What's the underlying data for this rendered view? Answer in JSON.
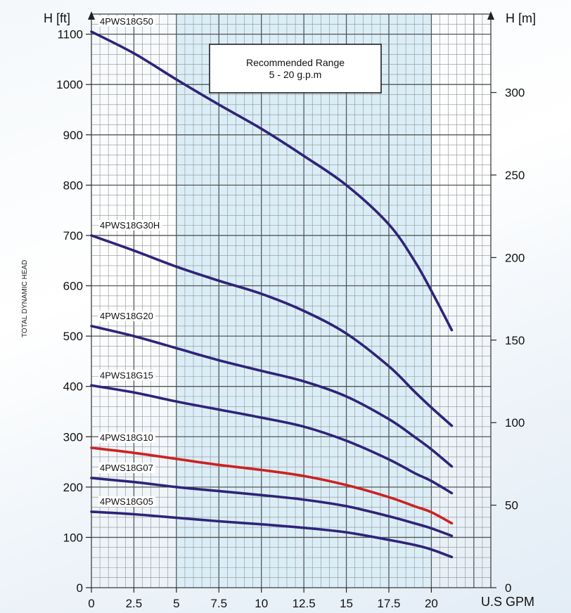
{
  "chart_data": {
    "type": "line",
    "xlabel": "U.S GPM",
    "ylabel_left": "H [ft]",
    "ylabel_right": "H [m]",
    "side_label": "TOTAL DYNAMIC HEAD",
    "xlim": [
      0,
      23.5
    ],
    "ylim": [
      0,
      1140
    ],
    "y2lim": [
      0,
      347.5
    ],
    "x_ticks": [
      "0",
      "2.5",
      "5",
      "7.5",
      "10",
      "12.5",
      "15",
      "17.5",
      "20"
    ],
    "x_tick_values": [
      0,
      2.5,
      5,
      7.5,
      10,
      12.5,
      15,
      17.5,
      20
    ],
    "y_ticks": [
      0,
      100,
      200,
      300,
      400,
      500,
      600,
      700,
      800,
      900,
      1000,
      1100
    ],
    "y2_ticks": [
      0,
      50,
      100,
      150,
      200,
      250,
      300
    ],
    "grid": true,
    "recommended_range": {
      "x": [
        5,
        20
      ],
      "title": "Recommended Range",
      "subtitle": "5 - 20 g.p.m",
      "fill": "#dbeef7"
    },
    "colors": {
      "default": "#2f237a",
      "highlight": "#cc2222",
      "grid": "#8f8f8f"
    },
    "series": [
      {
        "name": "4PWS18G50",
        "color": "#2f237a",
        "x": [
          0,
          2.5,
          5,
          7.5,
          10,
          12.5,
          15,
          17.5,
          19,
          20,
          21.2
        ],
        "y": [
          1105,
          1062,
          1010,
          960,
          912,
          858,
          800,
          722,
          650,
          590,
          512
        ]
      },
      {
        "name": "4PWS18G30H",
        "color": "#2f237a",
        "x": [
          0,
          2.5,
          5,
          7.5,
          10,
          12.5,
          15,
          17.5,
          19,
          20,
          21.2
        ],
        "y": [
          700,
          670,
          638,
          610,
          584,
          550,
          505,
          440,
          390,
          358,
          322
        ]
      },
      {
        "name": "4PWS18G20",
        "color": "#2f237a",
        "x": [
          0,
          2.5,
          5,
          7.5,
          10,
          12.5,
          15,
          17.5,
          19,
          20,
          21.2
        ],
        "y": [
          520,
          500,
          476,
          452,
          431,
          410,
          380,
          335,
          300,
          275,
          241
        ]
      },
      {
        "name": "4PWS18G15",
        "color": "#2f237a",
        "x": [
          0,
          2.5,
          5,
          7.5,
          10,
          12.5,
          15,
          17.5,
          19,
          20,
          21.2
        ],
        "y": [
          402,
          388,
          370,
          354,
          338,
          320,
          292,
          255,
          228,
          212,
          188
        ]
      },
      {
        "name": "4PWS18G10",
        "color": "#cc2222",
        "x": [
          0,
          2.5,
          5,
          7.5,
          10,
          12.5,
          15,
          17.5,
          19,
          20,
          21.2
        ],
        "y": [
          278,
          268,
          256,
          244,
          234,
          222,
          204,
          180,
          162,
          150,
          128
        ]
      },
      {
        "name": "4PWS18G07",
        "color": "#2f237a",
        "x": [
          0,
          2.5,
          5,
          7.5,
          10,
          12.5,
          15,
          17.5,
          19,
          20,
          21.2
        ],
        "y": [
          218,
          210,
          200,
          192,
          184,
          175,
          162,
          142,
          128,
          118,
          103
        ]
      },
      {
        "name": "4PWS18G05",
        "color": "#2f237a",
        "x": [
          0,
          2.5,
          5,
          7.5,
          10,
          12.5,
          15,
          17.5,
          19,
          20,
          21.2
        ],
        "y": [
          151,
          146,
          139,
          132,
          126,
          119,
          110,
          95,
          85,
          76,
          61
        ]
      }
    ]
  }
}
